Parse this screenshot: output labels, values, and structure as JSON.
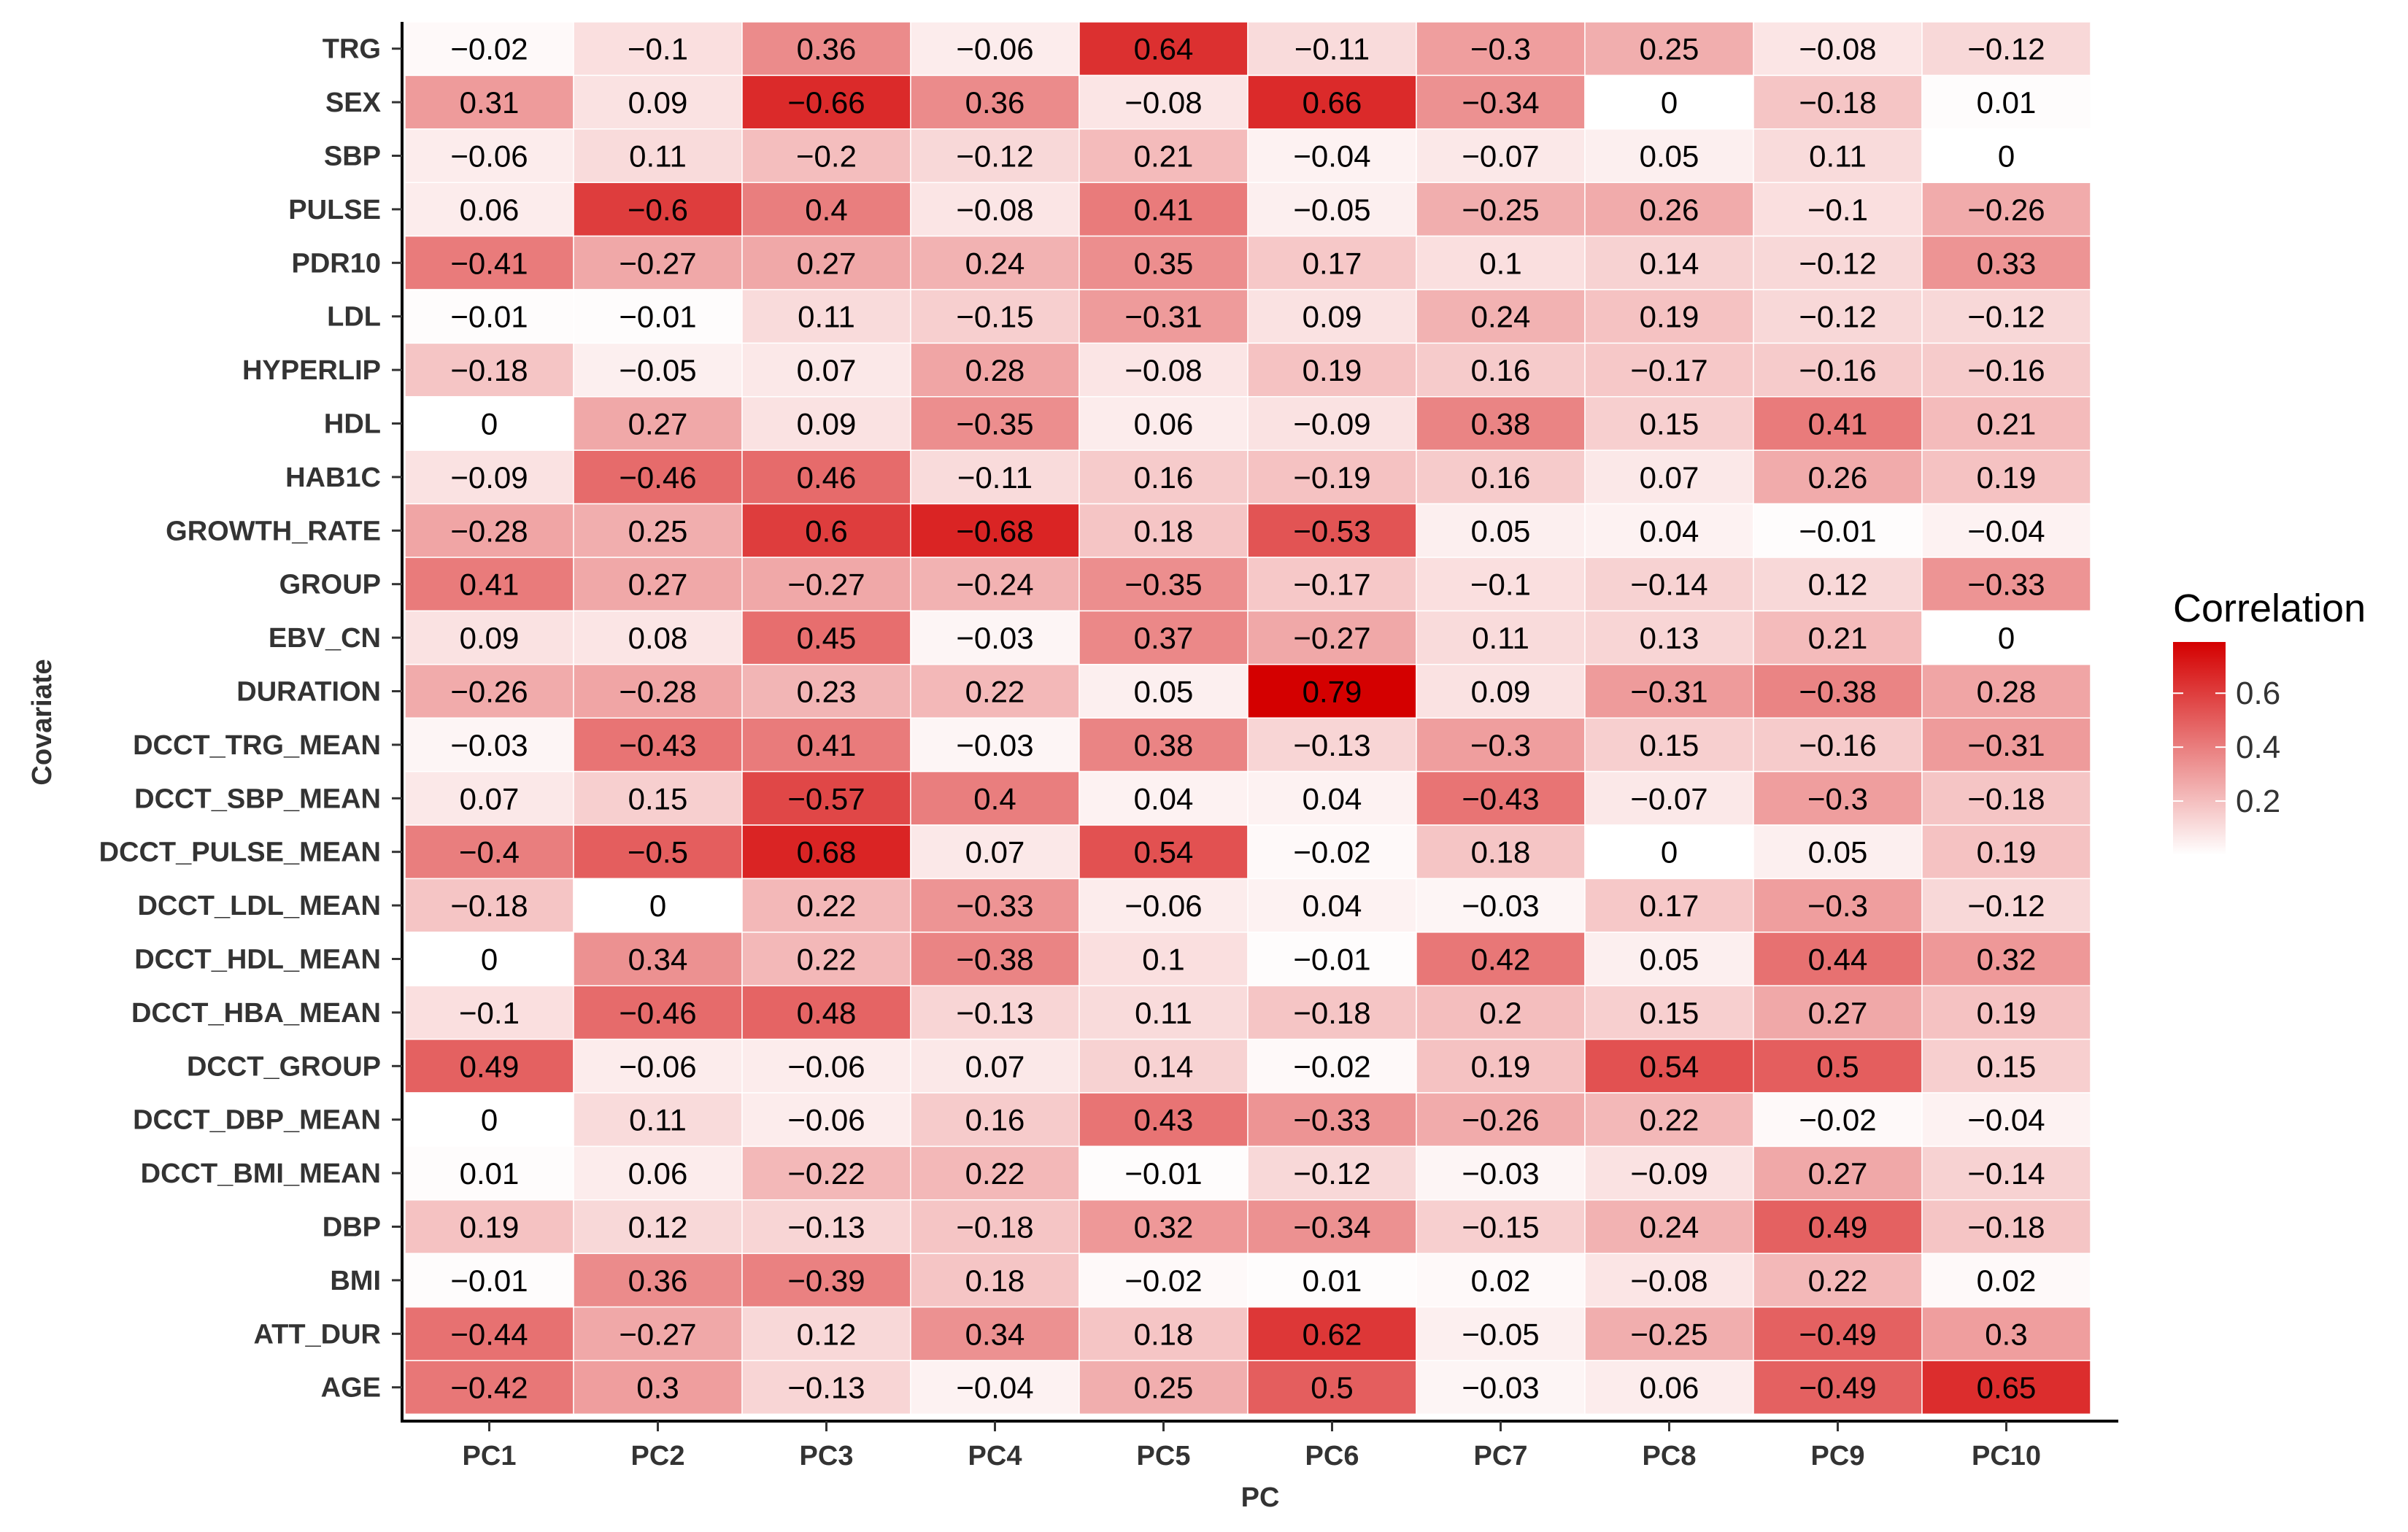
{
  "chart_data": {
    "type": "heatmap",
    "title": "",
    "xlabel": "PC",
    "ylabel": "Covariate",
    "x": [
      "PC1",
      "PC2",
      "PC3",
      "PC4",
      "PC5",
      "PC6",
      "PC7",
      "PC8",
      "PC9",
      "PC10"
    ],
    "y": [
      "TRG",
      "SEX",
      "SBP",
      "PULSE",
      "PDR10",
      "LDL",
      "HYPERLIP",
      "HDL",
      "HAB1C",
      "GROWTH_RATE",
      "GROUP",
      "EBV_CN",
      "DURATION",
      "DCCT_TRG_MEAN",
      "DCCT_SBP_MEAN",
      "DCCT_PULSE_MEAN",
      "DCCT_LDL_MEAN",
      "DCCT_HDL_MEAN",
      "DCCT_HBA_MEAN",
      "DCCT_GROUP",
      "DCCT_DBP_MEAN",
      "DCCT_BMI_MEAN",
      "DBP",
      "BMI",
      "ATT_DUR",
      "AGE"
    ],
    "values": [
      [
        -0.02,
        -0.1,
        0.36,
        -0.06,
        0.64,
        -0.11,
        -0.3,
        0.25,
        -0.08,
        -0.12
      ],
      [
        0.31,
        0.09,
        -0.66,
        0.36,
        -0.08,
        0.66,
        -0.34,
        0,
        -0.18,
        0.01
      ],
      [
        -0.06,
        0.11,
        -0.2,
        -0.12,
        0.21,
        -0.04,
        -0.07,
        0.05,
        0.11,
        0
      ],
      [
        0.06,
        -0.6,
        0.4,
        -0.08,
        0.41,
        -0.05,
        -0.25,
        0.26,
        -0.1,
        -0.26
      ],
      [
        -0.41,
        -0.27,
        0.27,
        0.24,
        0.35,
        0.17,
        0.1,
        0.14,
        -0.12,
        0.33
      ],
      [
        -0.01,
        -0.01,
        0.11,
        -0.15,
        -0.31,
        0.09,
        0.24,
        0.19,
        -0.12,
        -0.12
      ],
      [
        -0.18,
        -0.05,
        0.07,
        0.28,
        -0.08,
        0.19,
        0.16,
        -0.17,
        -0.16,
        -0.16
      ],
      [
        0,
        0.27,
        0.09,
        -0.35,
        0.06,
        -0.09,
        0.38,
        0.15,
        0.41,
        0.21
      ],
      [
        -0.09,
        -0.46,
        0.46,
        -0.11,
        0.16,
        -0.19,
        0.16,
        0.07,
        0.26,
        0.19
      ],
      [
        -0.28,
        0.25,
        0.6,
        -0.68,
        0.18,
        -0.53,
        0.05,
        0.04,
        -0.01,
        -0.04
      ],
      [
        0.41,
        0.27,
        -0.27,
        -0.24,
        -0.35,
        -0.17,
        -0.1,
        -0.14,
        0.12,
        -0.33
      ],
      [
        0.09,
        0.08,
        0.45,
        -0.03,
        0.37,
        -0.27,
        0.11,
        0.13,
        0.21,
        0
      ],
      [
        -0.26,
        -0.28,
        0.23,
        0.22,
        0.05,
        0.79,
        0.09,
        -0.31,
        -0.38,
        0.28
      ],
      [
        -0.03,
        -0.43,
        0.41,
        -0.03,
        0.38,
        -0.13,
        -0.3,
        0.15,
        -0.16,
        -0.31
      ],
      [
        0.07,
        0.15,
        -0.57,
        0.4,
        0.04,
        0.04,
        -0.43,
        -0.07,
        -0.3,
        -0.18
      ],
      [
        -0.4,
        -0.5,
        0.68,
        0.07,
        0.54,
        -0.02,
        0.18,
        0,
        0.05,
        0.19
      ],
      [
        -0.18,
        0,
        0.22,
        -0.33,
        -0.06,
        0.04,
        -0.03,
        0.17,
        -0.3,
        -0.12
      ],
      [
        0,
        0.34,
        0.22,
        -0.38,
        0.1,
        -0.01,
        0.42,
        0.05,
        0.44,
        0.32
      ],
      [
        -0.1,
        -0.46,
        0.48,
        -0.13,
        0.11,
        -0.18,
        0.2,
        0.15,
        0.27,
        0.19
      ],
      [
        0.49,
        -0.06,
        -0.06,
        0.07,
        0.14,
        -0.02,
        0.19,
        0.54,
        0.5,
        0.15
      ],
      [
        0,
        0.11,
        -0.06,
        0.16,
        0.43,
        -0.33,
        -0.26,
        0.22,
        -0.02,
        -0.04
      ],
      [
        0.01,
        0.06,
        -0.22,
        0.22,
        -0.01,
        -0.12,
        -0.03,
        -0.09,
        0.27,
        -0.14
      ],
      [
        0.19,
        0.12,
        -0.13,
        -0.18,
        0.32,
        -0.34,
        -0.15,
        0.24,
        0.49,
        -0.18
      ],
      [
        -0.01,
        0.36,
        -0.39,
        0.18,
        -0.02,
        0.01,
        0.02,
        -0.08,
        0.22,
        0.02
      ],
      [
        -0.44,
        -0.27,
        0.12,
        0.34,
        0.18,
        0.62,
        -0.05,
        -0.25,
        -0.49,
        0.3
      ],
      [
        -0.42,
        0.3,
        -0.13,
        -0.04,
        0.25,
        0.5,
        -0.03,
        0.06,
        -0.49,
        0.65
      ]
    ],
    "color_metric": "absolute value of correlation",
    "legend": {
      "title": "Correlation",
      "ticks": [
        0.2,
        0.4,
        0.6
      ],
      "range": [
        0,
        0.79
      ],
      "low_color": "#ffffff",
      "high_color": "#d40000",
      "placement": "right"
    }
  }
}
